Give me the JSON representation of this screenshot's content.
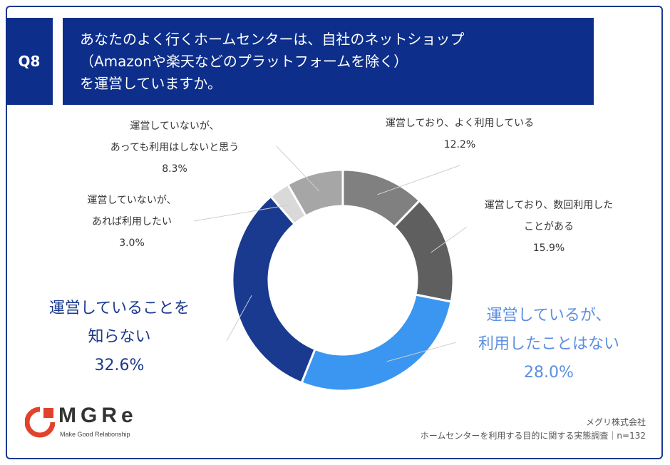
{
  "header": {
    "badge": "Q8",
    "question_lines": [
      "あなたのよく行くホームセンターは、自社のネットショップ",
      "（Amazonや楽天などのプラットフォームを除く）",
      "を運営していますか。"
    ]
  },
  "chart_data": {
    "type": "pie",
    "variant": "donut",
    "slices": [
      {
        "label_lines": [
          "運営しており、よく利用している"
        ],
        "value": 12.2,
        "value_label": "12.2%",
        "color": "#808080"
      },
      {
        "label_lines": [
          "運営しており、数回利用した",
          "ことがある"
        ],
        "value": 15.9,
        "value_label": "15.9%",
        "color": "#5f5f5f"
      },
      {
        "label_lines": [
          "運営しているが、",
          "利用したことはない"
        ],
        "value": 28.0,
        "value_label": "28.0%",
        "color": "#3a96f0"
      },
      {
        "label_lines": [
          "運営していることを",
          "知らない"
        ],
        "value": 32.6,
        "value_label": "32.6%",
        "color": "#1a3a8f"
      },
      {
        "label_lines": [
          "運営していないが、",
          "あれば利用したい"
        ],
        "value": 3.0,
        "value_label": "3.0%",
        "color": "#d9d9d9"
      },
      {
        "label_lines": [
          "運営していないが、",
          "あっても利用はしないと思う"
        ],
        "value": 8.3,
        "value_label": "8.3%",
        "color": "#a6a6a6"
      }
    ]
  },
  "footer": {
    "logo_text": "MGRe",
    "logo_tagline": "Make Good Relationship",
    "company": "メグリ株式会社",
    "survey": "ホームセンターを利用する目的に関する実態調査｜n=132"
  }
}
